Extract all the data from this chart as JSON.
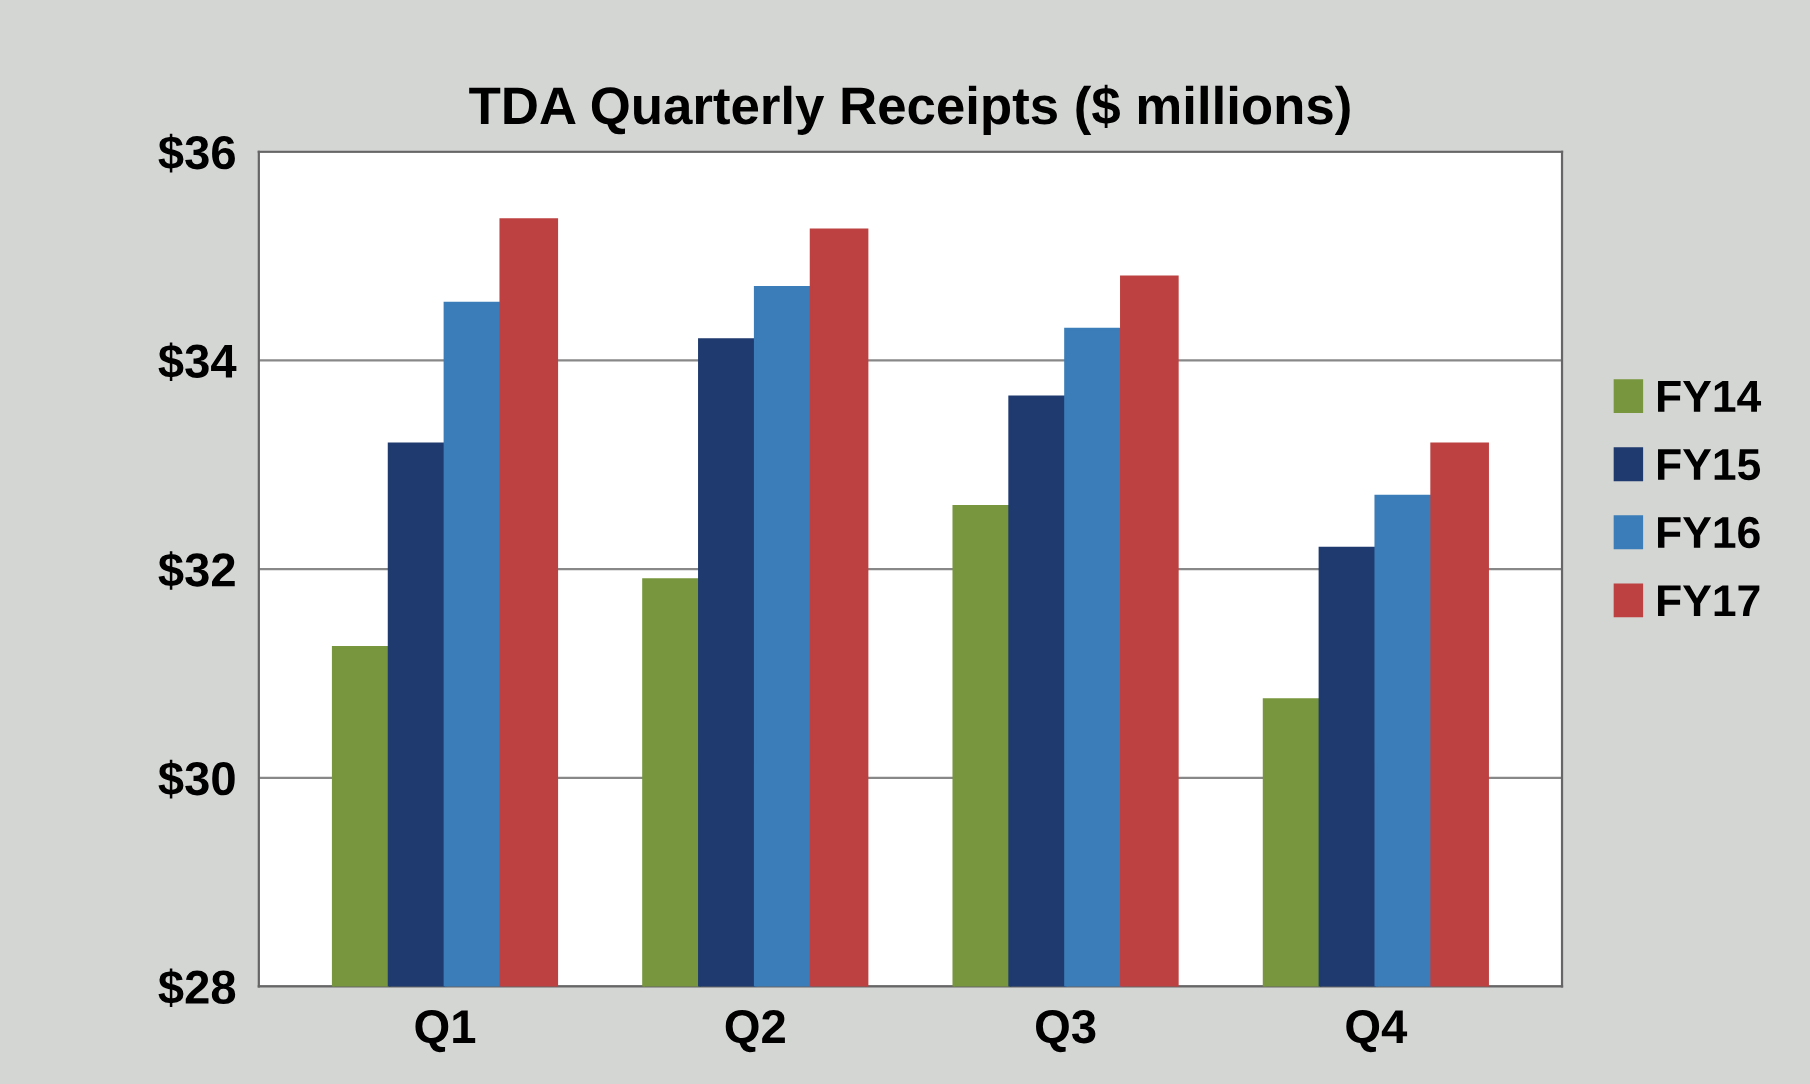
{
  "chart_data": {
    "type": "bar",
    "title": "TDA Quarterly Receipts ($ millions)",
    "categories": [
      "Q1",
      "Q2",
      "Q3",
      "Q4"
    ],
    "series": [
      {
        "name": "FY14",
        "color": "#77963d",
        "values": [
          31.25,
          31.9,
          32.6,
          30.75
        ]
      },
      {
        "name": "FY15",
        "color": "#1f3a6e",
        "values": [
          33.2,
          34.2,
          33.65,
          32.2
        ]
      },
      {
        "name": "FY16",
        "color": "#3b7db8",
        "values": [
          34.55,
          34.7,
          34.3,
          32.7
        ]
      },
      {
        "name": "FY17",
        "color": "#be4141",
        "values": [
          35.35,
          35.25,
          34.8,
          33.2
        ]
      }
    ],
    "ylim": [
      28,
      36
    ],
    "yticks": [
      {
        "value": 28,
        "label": "$28"
      },
      {
        "value": 30,
        "label": "$30"
      },
      {
        "value": 32,
        "label": "$32"
      },
      {
        "value": 34,
        "label": "$34"
      },
      {
        "value": 36,
        "label": "$36"
      }
    ],
    "grid": "y",
    "legend": "right"
  }
}
